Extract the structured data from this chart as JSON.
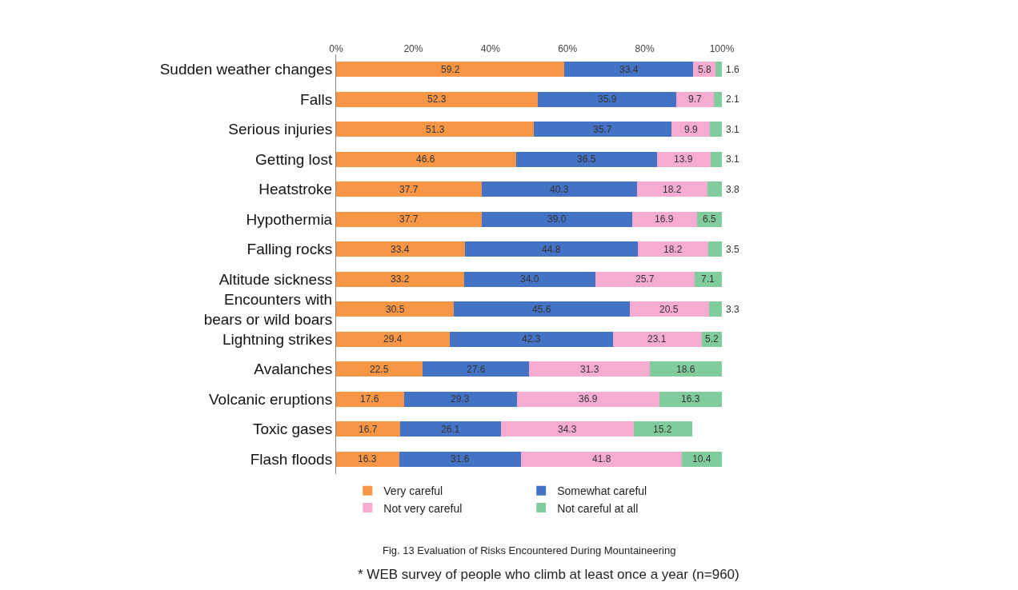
{
  "chart_data": {
    "type": "bar",
    "orientation": "horizontal",
    "stacked": true,
    "legend": "bottom",
    "categories": [
      "Sudden weather changes",
      "Falls",
      "Serious injuries",
      "Getting lost",
      "Heatstroke",
      "Hypothermia",
      "Falling rocks",
      "Altitude sickness",
      "Encounters with\nbears or wild boars",
      "Lightning strikes",
      "Avalanches",
      "Volcanic eruptions",
      "Toxic gases",
      "Flash floods"
    ],
    "series": [
      {
        "name": "Very careful",
        "color": "#f79646",
        "values": [
          59.2,
          52.3,
          51.3,
          46.6,
          37.7,
          37.7,
          33.4,
          33.2,
          30.5,
          29.4,
          22.5,
          17.6,
          16.7,
          16.3
        ],
        "value_labels": [
          "59.2",
          "52.3",
          "51.3",
          "46.6",
          "37.7",
          "37.7",
          "33.4",
          "33.2",
          "30.5",
          "29.4",
          "22.5",
          "17.6",
          "16.7",
          "16.3"
        ]
      },
      {
        "name": "Somewhat careful",
        "color": "#4472c4",
        "values": [
          33.4,
          35.9,
          35.7,
          36.5,
          40.3,
          39.0,
          44.8,
          34.0,
          45.6,
          42.3,
          27.6,
          29.3,
          26.1,
          31.6
        ],
        "value_labels": [
          "33.4",
          "35.9",
          "35.7",
          "36.5",
          "40.3",
          "39.0",
          "44.8",
          "34.0",
          "45.6",
          "42.3",
          "27.6",
          "29.3",
          "26.1",
          "31.6"
        ]
      },
      {
        "name": "Not very careful",
        "color": "#f5acd0",
        "values": [
          5.8,
          9.7,
          9.9,
          13.9,
          18.2,
          16.9,
          18.2,
          25.7,
          20.5,
          23.1,
          31.3,
          36.9,
          34.3,
          41.8
        ],
        "value_labels": [
          "5.8",
          "9.7",
          "9.9",
          "13.9",
          "18.2",
          "16.9",
          "18.2",
          "25.7",
          "20.5",
          "23.1",
          "31.3",
          "36.9",
          "34.3",
          "41.8"
        ]
      },
      {
        "name": "Not careful at all",
        "color": "#80cc9c",
        "values": [
          1.6,
          2.1,
          3.1,
          3.1,
          3.8,
          6.5,
          3.5,
          7.1,
          3.3,
          5.2,
          18.6,
          16.3,
          15.2,
          10.4
        ],
        "value_labels": [
          "1.6",
          "2.1",
          "3.1",
          "3.1",
          "3.8",
          "6.5",
          "3.5",
          "7.1",
          "3.3",
          "5.2",
          "18.6",
          "16.3",
          "15.2",
          "10.4"
        ]
      }
    ],
    "xlim": [
      0,
      100
    ],
    "xticks": [
      {
        "value": 0,
        "label": "0%"
      },
      {
        "value": 20,
        "label": "20%"
      },
      {
        "value": 40,
        "label": "40%"
      },
      {
        "value": 60,
        "label": "60%"
      },
      {
        "value": 80,
        "label": "80%"
      },
      {
        "value": 100,
        "label": "100%"
      }
    ],
    "annotations": [
      "Fig. 13 Evaluation of Risks Encountered During Mountaineering",
      "* WEB survey of people who climb at least once a year (n=960)"
    ]
  }
}
